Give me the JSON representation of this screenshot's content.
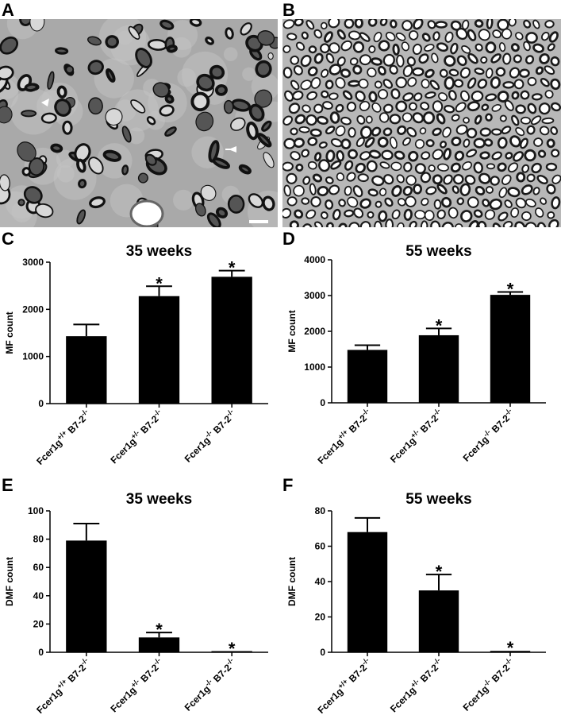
{
  "panels": {
    "A": "A",
    "B": "B",
    "C": "C",
    "D": "D",
    "E": "E",
    "F": "F"
  },
  "micrographs": {
    "A": {
      "bg": "#a9a9a9",
      "axon": "#111111",
      "tissue": "#c4c4c4",
      "arrow": "#ffffff"
    },
    "B": {
      "bg": "#b8b8b8",
      "axon": "#1a1a1a",
      "lumen": "#ffffff"
    }
  },
  "colors": {
    "bar": "#000000",
    "axis": "#000000"
  },
  "chart_data": [
    {
      "panel": "C",
      "type": "bar",
      "title": "35 weeks",
      "ylabel": "MF count",
      "ylim": [
        0,
        3000
      ],
      "yticks": [
        0,
        1000,
        2000,
        3000
      ],
      "categories": [
        {
          "base": "Fcer1g",
          "sup": "+/+",
          "suffix": " B7-2",
          "suffix_sup": "-/-"
        },
        {
          "base": "Fcer1g",
          "sup": "+/-",
          "suffix": " B7-2",
          "suffix_sup": "-/-"
        },
        {
          "base": "Fcer1g",
          "sup": "-/-",
          "suffix": " B7-2",
          "suffix_sup": "-/-"
        }
      ],
      "values": [
        1430,
        2280,
        2690
      ],
      "errors": [
        250,
        210,
        130
      ],
      "significance": [
        "",
        "*",
        "*"
      ]
    },
    {
      "panel": "D",
      "type": "bar",
      "title": "55 weeks",
      "ylabel": "MF count",
      "ylim": [
        0,
        4000
      ],
      "yticks": [
        0,
        1000,
        2000,
        3000,
        4000
      ],
      "categories": [
        {
          "base": "Fcer1g",
          "sup": "+/+",
          "suffix": " B7-2",
          "suffix_sup": "-/-"
        },
        {
          "base": "Fcer1g",
          "sup": "+/-",
          "suffix": " B7-2",
          "suffix_sup": "-/-"
        },
        {
          "base": "Fcer1g",
          "sup": "-/-",
          "suffix": " B7-2",
          "suffix_sup": "-/-"
        }
      ],
      "values": [
        1480,
        1890,
        3020
      ],
      "errors": [
        130,
        190,
        80
      ],
      "significance": [
        "",
        "*",
        "*"
      ]
    },
    {
      "panel": "E",
      "type": "bar",
      "title": "35 weeks",
      "ylabel": "DMF count",
      "ylim": [
        0,
        100
      ],
      "yticks": [
        0,
        20,
        40,
        60,
        80,
        100
      ],
      "categories": [
        {
          "base": "Fcer1g",
          "sup": "+/+",
          "suffix": " B7-2",
          "suffix_sup": "-/-"
        },
        {
          "base": "Fcer1g",
          "sup": "+/-",
          "suffix": " B7-2",
          "suffix_sup": "-/-"
        },
        {
          "base": "Fcer1g",
          "sup": "-/-",
          "suffix": " B7-2",
          "suffix_sup": "-/-"
        }
      ],
      "values": [
        79,
        10.5,
        0.5
      ],
      "errors": [
        12,
        3.5,
        0
      ],
      "significance": [
        "",
        "*",
        "*"
      ]
    },
    {
      "panel": "F",
      "type": "bar",
      "title": "55 weeks",
      "ylabel": "DMF count",
      "ylim": [
        0,
        80
      ],
      "yticks": [
        0,
        20,
        40,
        60,
        80
      ],
      "categories": [
        {
          "base": "Fcer1g",
          "sup": "+/+",
          "suffix": " B7-2",
          "suffix_sup": "-/-"
        },
        {
          "base": "Fcer1g",
          "sup": "+/-",
          "suffix": " B7-2",
          "suffix_sup": "-/-"
        },
        {
          "base": "Fcer1g",
          "sup": "-/-",
          "suffix": " B7-2",
          "suffix_sup": "-/-"
        }
      ],
      "values": [
        68,
        35,
        0.8
      ],
      "errors": [
        8,
        9,
        0
      ],
      "significance": [
        "",
        "*",
        "*"
      ]
    }
  ]
}
